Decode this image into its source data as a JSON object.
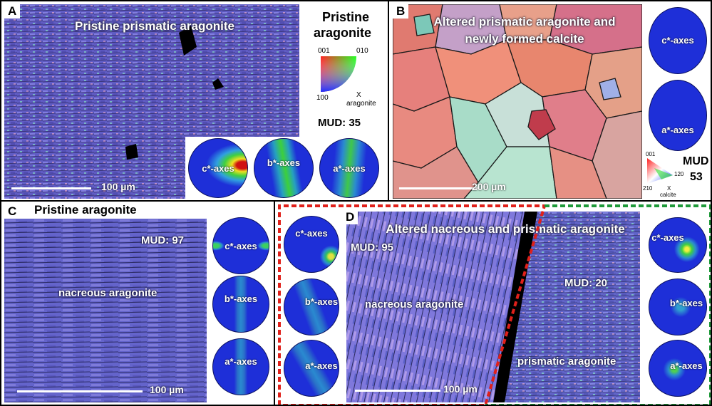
{
  "panels": {
    "a": {
      "letter": "A",
      "map_title": "Pristine prismatic aragonite",
      "legend_title_line1": "Pristine",
      "legend_title_line2": "aragonite",
      "key": {
        "c001": "001",
        "c010": "010",
        "c100": "100",
        "x": "X",
        "mineral": "aragonite"
      },
      "mud": "MUD: 35",
      "scale": "100 µm",
      "pole_figures": [
        "c*-axes",
        "b*-axes",
        "a*-axes"
      ]
    },
    "b": {
      "letter": "B",
      "map_title_line1": "Altered prismatic aragonite and",
      "map_title_line2": "newly formed calcite",
      "key": {
        "c001": "001",
        "c120": "120",
        "c210": "210",
        "x": "X",
        "mineral": "calcite"
      },
      "mud_label": "MUD",
      "mud_value": "53",
      "scale": "200 µm",
      "pole_figures": [
        "c*-axes",
        "a*-axes"
      ]
    },
    "c": {
      "letter": "C",
      "title": "Pristine aragonite",
      "mud": "MUD: 97",
      "region": "nacreous aragonite",
      "scale": "100 µm",
      "pole_figures": [
        "c*-axes",
        "b*-axes",
        "a*-axes"
      ]
    },
    "d": {
      "letter": "D",
      "map_title": "Altered nacreous and prismatic aragonite",
      "mud_left": "MUD: 95",
      "mud_right": "MUD: 20",
      "region_left": "nacreous aragonite",
      "region_right": "prismatic aragonite",
      "scale": "100 µm",
      "pole_figures_left": [
        "c*-axes",
        "b*-axes",
        "a*-axes"
      ],
      "pole_figures_right": [
        "c*-axes",
        "b*-axes",
        "a*-axes"
      ]
    }
  },
  "colors": {
    "nacre": "#6f6fd0",
    "pf_background": "#1e2fd8",
    "highlight_red": "#e0201a",
    "highlight_green": "#1f9a3a"
  }
}
